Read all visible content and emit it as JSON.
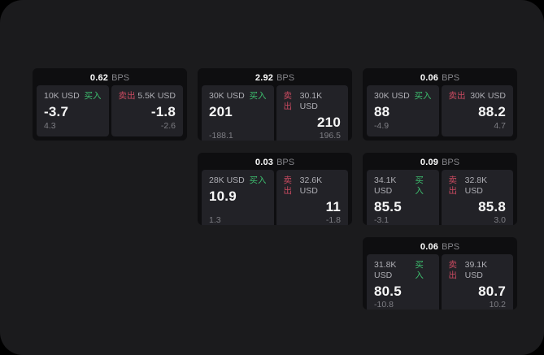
{
  "colors": {
    "outer_bg": "#000000",
    "window_bg": "#1b1b1d",
    "card_bg": "#0e0e10",
    "panel_bg": "#222227",
    "buy_green": "#3dbd6e",
    "sell_red": "#c94a60",
    "price_white": "#f7f7f7",
    "label_gray": "#aeaeb4",
    "delta_gray": "#7e7e84",
    "unit_gray": "#85858a"
  },
  "cards": [
    {
      "col": 1,
      "row": 1,
      "bps_value": "0.62",
      "bps_unit": "BPS",
      "buy": {
        "notional": "10K USD",
        "side_label": "买入",
        "price": "-3.7",
        "delta": "4.3"
      },
      "sell": {
        "notional": "5.5K USD",
        "side_label": "卖出",
        "price": "-1.8",
        "delta": "-2.6"
      }
    },
    {
      "col": 2,
      "row": 1,
      "bps_value": "2.92",
      "bps_unit": "BPS",
      "buy": {
        "notional": "30K USD",
        "side_label": "买入",
        "price": "201",
        "delta": "-188.1"
      },
      "sell": {
        "notional": "30.1K USD",
        "side_label": "卖出",
        "price": "210",
        "delta": "196.5"
      }
    },
    {
      "col": 3,
      "row": 1,
      "bps_value": "0.06",
      "bps_unit": "BPS",
      "buy": {
        "notional": "30K USD",
        "side_label": "买入",
        "price": "88",
        "delta": "-4.9"
      },
      "sell": {
        "notional": "30K USD",
        "side_label": "卖出",
        "price": "88.2",
        "delta": "4.7"
      }
    },
    {
      "col": 2,
      "row": 2,
      "bps_value": "0.03",
      "bps_unit": "BPS",
      "buy": {
        "notional": "28K USD",
        "side_label": "买入",
        "price": "10.9",
        "delta": "1.3"
      },
      "sell": {
        "notional": "32.6K USD",
        "side_label": "卖出",
        "price": "11",
        "delta": "-1.8"
      }
    },
    {
      "col": 3,
      "row": 2,
      "bps_value": "0.09",
      "bps_unit": "BPS",
      "buy": {
        "notional": "34.1K USD",
        "side_label": "买入",
        "price": "85.5",
        "delta": "-3.1"
      },
      "sell": {
        "notional": "32.8K USD",
        "side_label": "卖出",
        "price": "85.8",
        "delta": "3.0"
      }
    },
    {
      "col": 3,
      "row": 3,
      "bps_value": "0.06",
      "bps_unit": "BPS",
      "buy": {
        "notional": "31.8K USD",
        "side_label": "买入",
        "price": "80.5",
        "delta": "-10.8"
      },
      "sell": {
        "notional": "39.1K USD",
        "side_label": "卖出",
        "price": "80.7",
        "delta": "10.2"
      }
    }
  ]
}
